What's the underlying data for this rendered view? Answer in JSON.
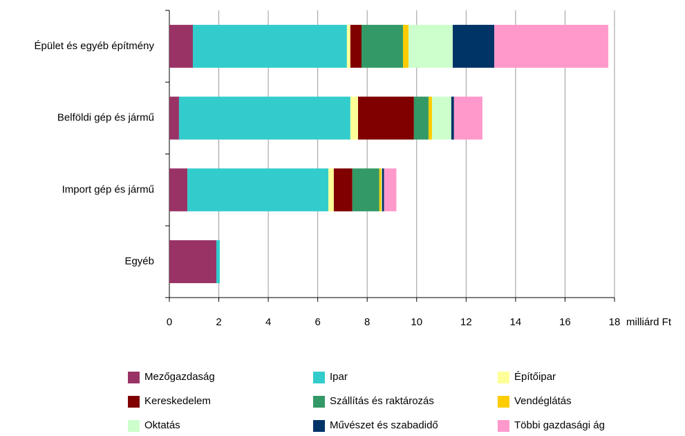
{
  "chart_data": {
    "type": "stacked_barh",
    "categories": [
      "Épület és egyéb építmény",
      "Belföldi gép és jármű",
      "Import gép és jármű",
      "Egyéb"
    ],
    "xlabel": "milliárd Ft",
    "xlim": [
      0,
      18
    ],
    "xticks": [
      0,
      2,
      4,
      6,
      8,
      10,
      12,
      14,
      16,
      18
    ],
    "grid": true,
    "series": [
      {
        "name": "Mezőgazdaság",
        "color": "#993366",
        "values": [
          0.95,
          0.39,
          0.73,
          1.9
        ]
      },
      {
        "name": "Ipar",
        "color": "#33cccc",
        "values": [
          6.23,
          6.93,
          5.7,
          0.14
        ]
      },
      {
        "name": "Építőipar",
        "color": "#ffff99",
        "values": [
          0.14,
          0.31,
          0.22,
          0
        ]
      },
      {
        "name": "Kereskedelem",
        "color": "#800000",
        "values": [
          0.45,
          2.26,
          0.75,
          0
        ]
      },
      {
        "name": "Szállítás és raktározás",
        "color": "#339966",
        "values": [
          1.68,
          0.59,
          1.09,
          0
        ]
      },
      {
        "name": "Vendéglátás",
        "color": "#ffcc00",
        "values": [
          0.22,
          0.14,
          0.08,
          0
        ]
      },
      {
        "name": "Oktatás",
        "color": "#ccffcc",
        "values": [
          1.79,
          0.78,
          0.03,
          0
        ]
      },
      {
        "name": "Művészet és szabadidő",
        "color": "#003366",
        "values": [
          1.68,
          0.11,
          0.08,
          0
        ]
      },
      {
        "name": "Többi gazdasági ág",
        "color": "#ff99cc",
        "values": [
          4.61,
          1.15,
          0.5,
          0
        ]
      }
    ]
  }
}
